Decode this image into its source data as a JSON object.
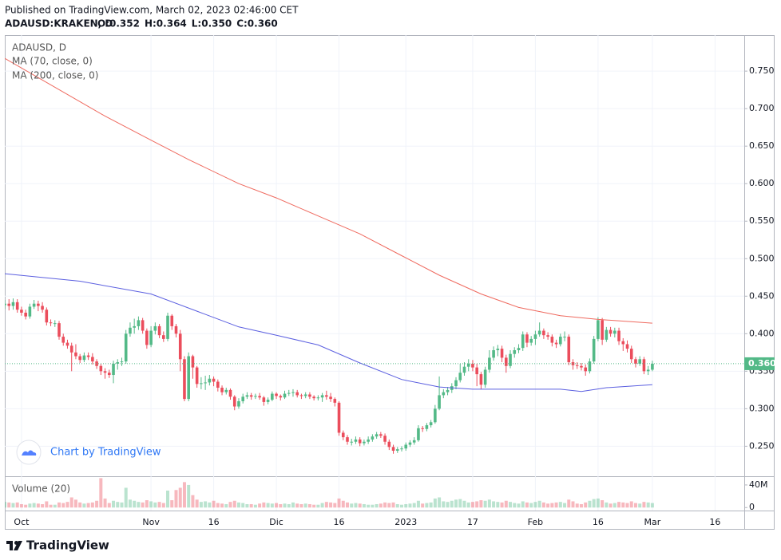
{
  "chart_data": {
    "type": "candlestick",
    "published": "Published on TradingView.com, March 02, 2023 02:46:00 CET",
    "symbol": "ADAUSD:KRAKEN, D",
    "ohlc_labels": [
      "O:0.352",
      "H:0.364",
      "L:0.350",
      "C:0.360"
    ],
    "title": "ADAUSD, D",
    "up_color": "#53b987",
    "down_color": "#eb4d5c",
    "x": [
      "2022-09-27",
      "2022-09-28",
      "2022-09-29",
      "2022-09-30",
      "2022-10-01",
      "2022-10-02",
      "2022-10-03",
      "2022-10-04",
      "2022-10-05",
      "2022-10-06",
      "2022-10-07",
      "2022-10-08",
      "2022-10-09",
      "2022-10-10",
      "2022-10-11",
      "2022-10-12",
      "2022-10-13",
      "2022-10-14",
      "2022-10-15",
      "2022-10-16",
      "2022-10-17",
      "2022-10-18",
      "2022-10-19",
      "2022-10-20",
      "2022-10-21",
      "2022-10-22",
      "2022-10-23",
      "2022-10-24",
      "2022-10-25",
      "2022-10-26",
      "2022-10-27",
      "2022-10-28",
      "2022-10-29",
      "2022-10-30",
      "2022-10-31",
      "2022-11-01",
      "2022-11-02",
      "2022-11-03",
      "2022-11-04",
      "2022-11-05",
      "2022-11-06",
      "2022-11-07",
      "2022-11-08",
      "2022-11-09",
      "2022-11-10",
      "2022-11-11",
      "2022-11-12",
      "2022-11-13",
      "2022-11-14",
      "2022-11-15",
      "2022-11-16",
      "2022-11-17",
      "2022-11-18",
      "2022-11-19",
      "2022-11-20",
      "2022-11-21",
      "2022-11-22",
      "2022-11-23",
      "2022-11-24",
      "2022-11-25",
      "2022-11-26",
      "2022-11-27",
      "2022-11-28",
      "2022-11-29",
      "2022-11-30",
      "2022-12-01",
      "2022-12-02",
      "2022-12-03",
      "2022-12-04",
      "2022-12-05",
      "2022-12-06",
      "2022-12-07",
      "2022-12-08",
      "2022-12-09",
      "2022-12-10",
      "2022-12-11",
      "2022-12-12",
      "2022-12-13",
      "2022-12-14",
      "2022-12-15",
      "2022-12-16",
      "2022-12-17",
      "2022-12-18",
      "2022-12-19",
      "2022-12-20",
      "2022-12-21",
      "2022-12-22",
      "2022-12-23",
      "2022-12-24",
      "2022-12-25",
      "2022-12-26",
      "2022-12-27",
      "2022-12-28",
      "2022-12-29",
      "2022-12-30",
      "2022-12-31",
      "2023-01-01",
      "2023-01-02",
      "2023-01-03",
      "2023-01-04",
      "2023-01-05",
      "2023-01-06",
      "2023-01-07",
      "2023-01-08",
      "2023-01-09",
      "2023-01-10",
      "2023-01-11",
      "2023-01-12",
      "2023-01-13",
      "2023-01-14",
      "2023-01-15",
      "2023-01-16",
      "2023-01-17",
      "2023-01-18",
      "2023-01-19",
      "2023-01-20",
      "2023-01-21",
      "2023-01-22",
      "2023-01-23",
      "2023-01-24",
      "2023-01-25",
      "2023-01-26",
      "2023-01-27",
      "2023-01-28",
      "2023-01-29",
      "2023-01-30",
      "2023-01-31",
      "2023-02-01",
      "2023-02-02",
      "2023-02-03",
      "2023-02-04",
      "2023-02-05",
      "2023-02-06",
      "2023-02-07",
      "2023-02-08",
      "2023-02-09",
      "2023-02-10",
      "2023-02-11",
      "2023-02-12",
      "2023-02-13",
      "2023-02-14",
      "2023-02-15",
      "2023-02-16",
      "2023-02-17",
      "2023-02-18",
      "2023-02-19",
      "2023-02-20",
      "2023-02-21",
      "2023-02-22",
      "2023-02-23",
      "2023-02-24",
      "2023-02-25",
      "2023-02-26",
      "2023-02-27",
      "2023-02-28",
      "2023-03-01"
    ],
    "open": [
      0.438,
      0.44,
      0.437,
      0.442,
      0.432,
      0.428,
      0.423,
      0.436,
      0.44,
      0.437,
      0.432,
      0.415,
      0.414,
      0.414,
      0.396,
      0.388,
      0.384,
      0.375,
      0.37,
      0.365,
      0.371,
      0.369,
      0.363,
      0.357,
      0.35,
      0.348,
      0.345,
      0.36,
      0.362,
      0.363,
      0.4,
      0.408,
      0.41,
      0.418,
      0.404,
      0.385,
      0.404,
      0.41,
      0.398,
      0.393,
      0.424,
      0.41,
      0.4,
      0.366,
      0.313,
      0.37,
      0.355,
      0.333,
      0.334,
      0.335,
      0.34,
      0.336,
      0.328,
      0.322,
      0.325,
      0.316,
      0.303,
      0.31,
      0.316,
      0.318,
      0.316,
      0.317,
      0.315,
      0.309,
      0.312,
      0.32,
      0.317,
      0.315,
      0.32,
      0.321,
      0.322,
      0.318,
      0.317,
      0.319,
      0.316,
      0.314,
      0.315,
      0.318,
      0.316,
      0.313,
      0.308,
      0.268,
      0.262,
      0.256,
      0.256,
      0.259,
      0.254,
      0.256,
      0.259,
      0.263,
      0.266,
      0.264,
      0.256,
      0.249,
      0.244,
      0.246,
      0.247,
      0.252,
      0.255,
      0.258,
      0.274,
      0.273,
      0.278,
      0.282,
      0.3,
      0.318,
      0.322,
      0.325,
      0.33,
      0.338,
      0.348,
      0.356,
      0.36,
      0.355,
      0.346,
      0.332,
      0.352,
      0.368,
      0.378,
      0.38,
      0.368,
      0.357,
      0.373,
      0.378,
      0.381,
      0.399,
      0.388,
      0.393,
      0.399,
      0.404,
      0.398,
      0.396,
      0.388,
      0.386,
      0.396,
      0.396,
      0.362,
      0.358,
      0.357,
      0.355,
      0.35,
      0.363,
      0.393,
      0.418,
      0.392,
      0.405,
      0.4,
      0.404,
      0.39,
      0.386,
      0.38,
      0.366,
      0.36,
      0.366,
      0.35,
      0.352
    ],
    "high": [
      0.445,
      0.446,
      0.447,
      0.446,
      0.436,
      0.432,
      0.44,
      0.445,
      0.444,
      0.442,
      0.435,
      0.419,
      0.418,
      0.417,
      0.4,
      0.392,
      0.388,
      0.386,
      0.373,
      0.375,
      0.375,
      0.374,
      0.366,
      0.36,
      0.354,
      0.352,
      0.364,
      0.366,
      0.368,
      0.405,
      0.415,
      0.42,
      0.423,
      0.421,
      0.407,
      0.41,
      0.415,
      0.413,
      0.403,
      0.428,
      0.426,
      0.413,
      0.405,
      0.37,
      0.375,
      0.372,
      0.357,
      0.342,
      0.344,
      0.345,
      0.343,
      0.339,
      0.331,
      0.328,
      0.327,
      0.318,
      0.314,
      0.32,
      0.322,
      0.321,
      0.32,
      0.321,
      0.317,
      0.315,
      0.323,
      0.322,
      0.319,
      0.324,
      0.325,
      0.326,
      0.325,
      0.32,
      0.322,
      0.322,
      0.318,
      0.318,
      0.321,
      0.324,
      0.321,
      0.315,
      0.31,
      0.271,
      0.265,
      0.26,
      0.263,
      0.262,
      0.259,
      0.263,
      0.266,
      0.269,
      0.269,
      0.267,
      0.259,
      0.252,
      0.249,
      0.25,
      0.255,
      0.258,
      0.262,
      0.278,
      0.277,
      0.281,
      0.285,
      0.305,
      0.343,
      0.326,
      0.329,
      0.334,
      0.342,
      0.36,
      0.362,
      0.366,
      0.365,
      0.36,
      0.349,
      0.356,
      0.378,
      0.383,
      0.385,
      0.384,
      0.372,
      0.378,
      0.382,
      0.386,
      0.403,
      0.402,
      0.397,
      0.404,
      0.415,
      0.407,
      0.402,
      0.399,
      0.392,
      0.4,
      0.403,
      0.399,
      0.366,
      0.362,
      0.361,
      0.359,
      0.367,
      0.397,
      0.422,
      0.421,
      0.409,
      0.409,
      0.408,
      0.408,
      0.394,
      0.391,
      0.384,
      0.369,
      0.37,
      0.369,
      0.357,
      0.364
    ],
    "low": [
      0.433,
      0.431,
      0.432,
      0.428,
      0.424,
      0.419,
      0.42,
      0.433,
      0.43,
      0.428,
      0.411,
      0.41,
      0.409,
      0.392,
      0.384,
      0.38,
      0.35,
      0.366,
      0.361,
      0.362,
      0.365,
      0.359,
      0.353,
      0.345,
      0.34,
      0.341,
      0.334,
      0.352,
      0.357,
      0.36,
      0.396,
      0.4,
      0.405,
      0.4,
      0.38,
      0.382,
      0.399,
      0.394,
      0.389,
      0.39,
      0.405,
      0.395,
      0.35,
      0.31,
      0.31,
      0.34,
      0.328,
      0.326,
      0.325,
      0.331,
      0.33,
      0.323,
      0.318,
      0.319,
      0.312,
      0.298,
      0.3,
      0.307,
      0.313,
      0.312,
      0.313,
      0.312,
      0.304,
      0.306,
      0.31,
      0.313,
      0.311,
      0.313,
      0.317,
      0.316,
      0.315,
      0.313,
      0.314,
      0.313,
      0.311,
      0.311,
      0.309,
      0.312,
      0.309,
      0.303,
      0.264,
      0.258,
      0.252,
      0.251,
      0.253,
      0.25,
      0.251,
      0.253,
      0.256,
      0.26,
      0.261,
      0.252,
      0.245,
      0.24,
      0.241,
      0.243,
      0.244,
      0.249,
      0.252,
      0.256,
      0.269,
      0.27,
      0.275,
      0.28,
      0.298,
      0.314,
      0.318,
      0.321,
      0.326,
      0.335,
      0.344,
      0.35,
      0.35,
      0.33,
      0.326,
      0.328,
      0.348,
      0.364,
      0.37,
      0.362,
      0.348,
      0.354,
      0.368,
      0.374,
      0.377,
      0.382,
      0.384,
      0.385,
      0.396,
      0.393,
      0.392,
      0.383,
      0.381,
      0.383,
      0.39,
      0.358,
      0.352,
      0.353,
      0.351,
      0.344,
      0.347,
      0.36,
      0.39,
      0.385,
      0.389,
      0.396,
      0.395,
      0.385,
      0.377,
      0.375,
      0.361,
      0.355,
      0.357,
      0.346,
      0.345,
      0.35
    ],
    "close": [
      0.44,
      0.437,
      0.442,
      0.432,
      0.428,
      0.423,
      0.436,
      0.44,
      0.437,
      0.432,
      0.415,
      0.414,
      0.414,
      0.396,
      0.388,
      0.384,
      0.375,
      0.37,
      0.365,
      0.371,
      0.369,
      0.363,
      0.357,
      0.35,
      0.348,
      0.345,
      0.36,
      0.362,
      0.363,
      0.4,
      0.408,
      0.41,
      0.418,
      0.404,
      0.385,
      0.404,
      0.41,
      0.398,
      0.393,
      0.424,
      0.41,
      0.4,
      0.366,
      0.313,
      0.37,
      0.355,
      0.333,
      0.334,
      0.335,
      0.34,
      0.336,
      0.328,
      0.322,
      0.325,
      0.316,
      0.303,
      0.31,
      0.316,
      0.318,
      0.316,
      0.317,
      0.315,
      0.309,
      0.312,
      0.32,
      0.317,
      0.315,
      0.32,
      0.321,
      0.322,
      0.318,
      0.317,
      0.319,
      0.316,
      0.314,
      0.315,
      0.318,
      0.316,
      0.313,
      0.308,
      0.268,
      0.262,
      0.256,
      0.256,
      0.259,
      0.254,
      0.256,
      0.259,
      0.263,
      0.266,
      0.264,
      0.256,
      0.249,
      0.244,
      0.246,
      0.247,
      0.252,
      0.255,
      0.258,
      0.274,
      0.273,
      0.278,
      0.282,
      0.3,
      0.318,
      0.322,
      0.325,
      0.33,
      0.338,
      0.348,
      0.356,
      0.36,
      0.355,
      0.346,
      0.332,
      0.352,
      0.368,
      0.378,
      0.38,
      0.368,
      0.357,
      0.373,
      0.378,
      0.381,
      0.399,
      0.388,
      0.393,
      0.399,
      0.404,
      0.398,
      0.396,
      0.388,
      0.386,
      0.396,
      0.396,
      0.362,
      0.358,
      0.357,
      0.355,
      0.35,
      0.363,
      0.393,
      0.418,
      0.392,
      0.405,
      0.4,
      0.404,
      0.39,
      0.386,
      0.38,
      0.366,
      0.36,
      0.366,
      0.35,
      0.352,
      0.36
    ],
    "volume": [
      10000000.0,
      9000000.0,
      8000000.0,
      9000000.0,
      6000000.0,
      5000000.0,
      7000000.0,
      8000000.0,
      7000000.0,
      6000000.0,
      11000000.0,
      5000000.0,
      5000000.0,
      9000000.0,
      8000000.0,
      10000000.0,
      18000000.0,
      14000000.0,
      9000000.0,
      7000000.0,
      8000000.0,
      9000000.0,
      12000000.0,
      52000000.0,
      16000000.0,
      8000000.0,
      12000000.0,
      10000000.0,
      9000000.0,
      35000000.0,
      14000000.0,
      12000000.0,
      10000000.0,
      9000000.0,
      13000000.0,
      11000000.0,
      9000000.0,
      10000000.0,
      8000000.0,
      30000000.0,
      13000000.0,
      31000000.0,
      35000000.0,
      45000000.0,
      40000000.0,
      22000000.0,
      14000000.0,
      10000000.0,
      11000000.0,
      9000000.0,
      12000000.0,
      8000000.0,
      7000000.0,
      6000000.0,
      10000000.0,
      12000000.0,
      9000000.0,
      8000000.0,
      6000000.0,
      6000000.0,
      5000000.0,
      7000000.0,
      9000000.0,
      8000000.0,
      7000000.0,
      8000000.0,
      6000000.0,
      7000000.0,
      6000000.0,
      9000000.0,
      7000000.0,
      6000000.0,
      7000000.0,
      6000000.0,
      5000000.0,
      5000000.0,
      8000000.0,
      10000000.0,
      9000000.0,
      8000000.0,
      16000000.0,
      12000000.0,
      9000000.0,
      7000000.0,
      8000000.0,
      7000000.0,
      6000000.0,
      5000000.0,
      5000000.0,
      6000000.0,
      7000000.0,
      9000000.0,
      8000000.0,
      9000000.0,
      6000000.0,
      5000000.0,
      6000000.0,
      7000000.0,
      8000000.0,
      12000000.0,
      7000000.0,
      8000000.0,
      9000000.0,
      16000000.0,
      18000000.0,
      11000000.0,
      10000000.0,
      12000000.0,
      14000000.0,
      15000000.0,
      12000000.0,
      9000000.0,
      10000000.0,
      11000000.0,
      13000000.0,
      12000000.0,
      14000000.0,
      11000000.0,
      10000000.0,
      9000000.0,
      12000000.0,
      10000000.0,
      8000000.0,
      7000000.0,
      11000000.0,
      9000000.0,
      8000000.0,
      10000000.0,
      12000000.0,
      9000000.0,
      7000000.0,
      8000000.0,
      9000000.0,
      10000000.0,
      8000000.0,
      14000000.0,
      11000000.0,
      7000000.0,
      6000000.0,
      9000000.0,
      12000000.0,
      15000000.0,
      16000000.0,
      13000000.0,
      9000000.0,
      7000000.0,
      8000000.0,
      10000000.0,
      9000000.0,
      8000000.0,
      11000000.0,
      8000000.0,
      7000000.0,
      10000000.0,
      9000000.0,
      8000000.0
    ],
    "series": [
      {
        "name": "MA (70, close, 0)",
        "color": "#5b5fe0",
        "x": [
          "2022-09-27",
          "2022-10-15",
          "2022-11-01",
          "2022-11-12",
          "2022-11-22",
          "2022-12-01",
          "2022-12-11",
          "2022-12-21",
          "2022-12-31",
          "2023-01-09",
          "2023-01-17",
          "2023-01-28",
          "2023-02-07",
          "2023-02-12",
          "2023-02-18",
          "2023-03-01"
        ],
        "values": [
          0.48,
          0.47,
          0.453,
          0.43,
          0.409,
          0.398,
          0.385,
          0.361,
          0.339,
          0.329,
          0.326,
          0.326,
          0.326,
          0.323,
          0.328,
          0.332
        ]
      },
      {
        "name": "MA (200, close, 0)",
        "color": "#ef6a5f",
        "x": [
          "2022-09-27",
          "2022-10-21",
          "2022-11-01",
          "2022-11-10",
          "2022-11-22",
          "2022-12-01",
          "2022-12-11",
          "2022-12-21",
          "2022-12-31",
          "2023-01-09",
          "2023-01-19",
          "2023-01-28",
          "2023-02-07",
          "2023-02-16",
          "2023-03-01"
        ],
        "values": [
          0.767,
          0.69,
          0.658,
          0.632,
          0.6,
          0.581,
          0.557,
          0.533,
          0.504,
          0.478,
          0.453,
          0.435,
          0.424,
          0.419,
          0.414
        ]
      }
    ],
    "xlim": [
      "2022-09-27",
      "2023-03-23"
    ],
    "xticks": [
      {
        "value": "2022-10-01",
        "label": "Oct"
      },
      {
        "value": "2022-11-01",
        "label": "Nov"
      },
      {
        "value": "2022-11-16",
        "label": "16"
      },
      {
        "value": "2022-12-01",
        "label": "Dic"
      },
      {
        "value": "2022-12-16",
        "label": "16"
      },
      {
        "value": "2023-01-01",
        "label": "2023"
      },
      {
        "value": "2023-01-17",
        "label": "17"
      },
      {
        "value": "2023-02-01",
        "label": "Feb"
      },
      {
        "value": "2023-02-16",
        "label": "16"
      },
      {
        "value": "2023-03-01",
        "label": "Mar"
      },
      {
        "value": "2023-03-16",
        "label": "16"
      }
    ],
    "ylim": [
      0.21,
      0.798
    ],
    "yticks": [
      {
        "value": 0.25,
        "label": "0.250"
      },
      {
        "value": 0.3,
        "label": "0.300"
      },
      {
        "value": 0.35,
        "label": "0.350"
      },
      {
        "value": 0.4,
        "label": "0.400"
      },
      {
        "value": 0.45,
        "label": "0.450"
      },
      {
        "value": 0.5,
        "label": "0.500"
      },
      {
        "value": 0.55,
        "label": "0.550"
      },
      {
        "value": 0.6,
        "label": "0.600"
      },
      {
        "value": 0.65,
        "label": "0.650"
      },
      {
        "value": 0.7,
        "label": "0.700"
      },
      {
        "value": 0.75,
        "label": "0.750"
      }
    ],
    "grid": true,
    "last_price": {
      "value": 0.36,
      "label": "0.360"
    },
    "volume_title": "Volume (20)",
    "volume_ylim": [
      -5300000,
      54000000
    ],
    "volume_ticks": [
      {
        "value": 40000000,
        "label": "40M"
      },
      0
    ],
    "watermark": "Chart by TradingView",
    "brand": "TradingView"
  }
}
